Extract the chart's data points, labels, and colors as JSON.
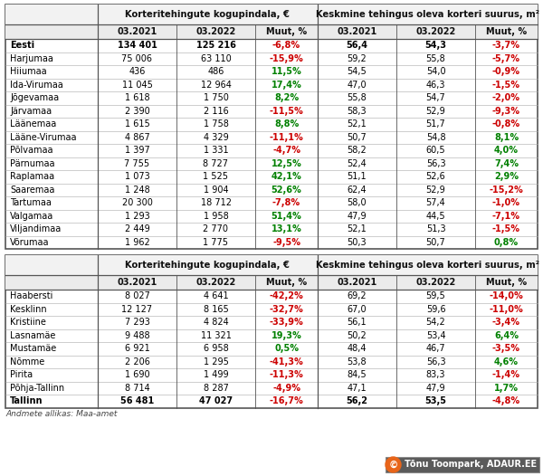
{
  "title1": "Korteritehingute kogupindala, €",
  "title2": "Keskmine tehingus oleva korteri suurus, m²",
  "col_headers": [
    "03.2021",
    "03.2022",
    "Muut, %"
  ],
  "table1": {
    "rows": [
      {
        "name": "Eesti",
        "bold": true,
        "v1": "134 401",
        "v2": "125 216",
        "v3": "-6,8%",
        "v3c": "red",
        "v4": "56,4",
        "v5": "54,3",
        "v6": "-3,7%",
        "v6c": "red"
      },
      {
        "name": "Harjumaa",
        "bold": false,
        "v1": "75 006",
        "v2": "63 110",
        "v3": "-15,9%",
        "v3c": "red",
        "v4": "59,2",
        "v5": "55,8",
        "v6": "-5,7%",
        "v6c": "red"
      },
      {
        "name": "Hiiumaa",
        "bold": false,
        "v1": "436",
        "v2": "486",
        "v3": "11,5%",
        "v3c": "green",
        "v4": "54,5",
        "v5": "54,0",
        "v6": "-0,9%",
        "v6c": "red"
      },
      {
        "name": "Ida-Virumaa",
        "bold": false,
        "v1": "11 045",
        "v2": "12 964",
        "v3": "17,4%",
        "v3c": "green",
        "v4": "47,0",
        "v5": "46,3",
        "v6": "-1,5%",
        "v6c": "red"
      },
      {
        "name": "Jõgevamaa",
        "bold": false,
        "v1": "1 618",
        "v2": "1 750",
        "v3": "8,2%",
        "v3c": "green",
        "v4": "55,8",
        "v5": "54,7",
        "v6": "-2,0%",
        "v6c": "red"
      },
      {
        "name": "Järvamaa",
        "bold": false,
        "v1": "2 390",
        "v2": "2 116",
        "v3": "-11,5%",
        "v3c": "red",
        "v4": "58,3",
        "v5": "52,9",
        "v6": "-9,3%",
        "v6c": "red"
      },
      {
        "name": "Läänemaa",
        "bold": false,
        "v1": "1 615",
        "v2": "1 758",
        "v3": "8,8%",
        "v3c": "green",
        "v4": "52,1",
        "v5": "51,7",
        "v6": "-0,8%",
        "v6c": "red"
      },
      {
        "name": "Lääne-Virumaa",
        "bold": false,
        "v1": "4 867",
        "v2": "4 329",
        "v3": "-11,1%",
        "v3c": "red",
        "v4": "50,7",
        "v5": "54,8",
        "v6": "8,1%",
        "v6c": "green"
      },
      {
        "name": "Põlvamaa",
        "bold": false,
        "v1": "1 397",
        "v2": "1 331",
        "v3": "-4,7%",
        "v3c": "red",
        "v4": "58,2",
        "v5": "60,5",
        "v6": "4,0%",
        "v6c": "green"
      },
      {
        "name": "Pärnumaa",
        "bold": false,
        "v1": "7 755",
        "v2": "8 727",
        "v3": "12,5%",
        "v3c": "green",
        "v4": "52,4",
        "v5": "56,3",
        "v6": "7,4%",
        "v6c": "green"
      },
      {
        "name": "Raplamaa",
        "bold": false,
        "v1": "1 073",
        "v2": "1 525",
        "v3": "42,1%",
        "v3c": "green",
        "v4": "51,1",
        "v5": "52,6",
        "v6": "2,9%",
        "v6c": "green"
      },
      {
        "name": "Saaremaa",
        "bold": false,
        "v1": "1 248",
        "v2": "1 904",
        "v3": "52,6%",
        "v3c": "green",
        "v4": "62,4",
        "v5": "52,9",
        "v6": "-15,2%",
        "v6c": "red"
      },
      {
        "name": "Tartumaa",
        "bold": false,
        "v1": "20 300",
        "v2": "18 712",
        "v3": "-7,8%",
        "v3c": "red",
        "v4": "58,0",
        "v5": "57,4",
        "v6": "-1,0%",
        "v6c": "red"
      },
      {
        "name": "Valgamaa",
        "bold": false,
        "v1": "1 293",
        "v2": "1 958",
        "v3": "51,4%",
        "v3c": "green",
        "v4": "47,9",
        "v5": "44,5",
        "v6": "-7,1%",
        "v6c": "red"
      },
      {
        "name": "Viljandimaa",
        "bold": false,
        "v1": "2 449",
        "v2": "2 770",
        "v3": "13,1%",
        "v3c": "green",
        "v4": "52,1",
        "v5": "51,3",
        "v6": "-1,5%",
        "v6c": "red"
      },
      {
        "name": "Võrumaa",
        "bold": false,
        "v1": "1 962",
        "v2": "1 775",
        "v3": "-9,5%",
        "v3c": "red",
        "v4": "50,3",
        "v5": "50,7",
        "v6": "0,8%",
        "v6c": "green"
      }
    ]
  },
  "table2": {
    "rows": [
      {
        "name": "Haabersti",
        "bold": false,
        "v1": "8 027",
        "v2": "4 641",
        "v3": "-42,2%",
        "v3c": "red",
        "v4": "69,2",
        "v5": "59,5",
        "v6": "-14,0%",
        "v6c": "red"
      },
      {
        "name": "Kesklinn",
        "bold": false,
        "v1": "12 127",
        "v2": "8 165",
        "v3": "-32,7%",
        "v3c": "red",
        "v4": "67,0",
        "v5": "59,6",
        "v6": "-11,0%",
        "v6c": "red"
      },
      {
        "name": "Kristiine",
        "bold": false,
        "v1": "7 293",
        "v2": "4 824",
        "v3": "-33,9%",
        "v3c": "red",
        "v4": "56,1",
        "v5": "54,2",
        "v6": "-3,4%",
        "v6c": "red"
      },
      {
        "name": "Lasnamäe",
        "bold": false,
        "v1": "9 488",
        "v2": "11 321",
        "v3": "19,3%",
        "v3c": "green",
        "v4": "50,2",
        "v5": "53,4",
        "v6": "6,4%",
        "v6c": "green"
      },
      {
        "name": "Mustamäe",
        "bold": false,
        "v1": "6 921",
        "v2": "6 958",
        "v3": "0,5%",
        "v3c": "green",
        "v4": "48,4",
        "v5": "46,7",
        "v6": "-3,5%",
        "v6c": "red"
      },
      {
        "name": "Nõmme",
        "bold": false,
        "v1": "2 206",
        "v2": "1 295",
        "v3": "-41,3%",
        "v3c": "red",
        "v4": "53,8",
        "v5": "56,3",
        "v6": "4,6%",
        "v6c": "green"
      },
      {
        "name": "Pirita",
        "bold": false,
        "v1": "1 690",
        "v2": "1 499",
        "v3": "-11,3%",
        "v3c": "red",
        "v4": "84,5",
        "v5": "83,3",
        "v6": "-1,4%",
        "v6c": "red"
      },
      {
        "name": "Põhja-Tallinn",
        "bold": false,
        "v1": "8 714",
        "v2": "8 287",
        "v3": "-4,9%",
        "v3c": "red",
        "v4": "47,1",
        "v5": "47,9",
        "v6": "1,7%",
        "v6c": "green"
      },
      {
        "name": "Tallinn",
        "bold": true,
        "v1": "56 481",
        "v2": "47 027",
        "v3": "-16,7%",
        "v3c": "red",
        "v4": "56,2",
        "v5": "53,5",
        "v6": "-4,8%",
        "v6c": "red"
      }
    ]
  },
  "footer": "Andmete allikas: Maa-amet",
  "watermark": "© Tõnu Toompark, ADAUR.EE",
  "green_color": "#008000",
  "red_color": "#CC0000",
  "wm_bg": "#5a5a5a",
  "wm_circle": "#E8651A"
}
